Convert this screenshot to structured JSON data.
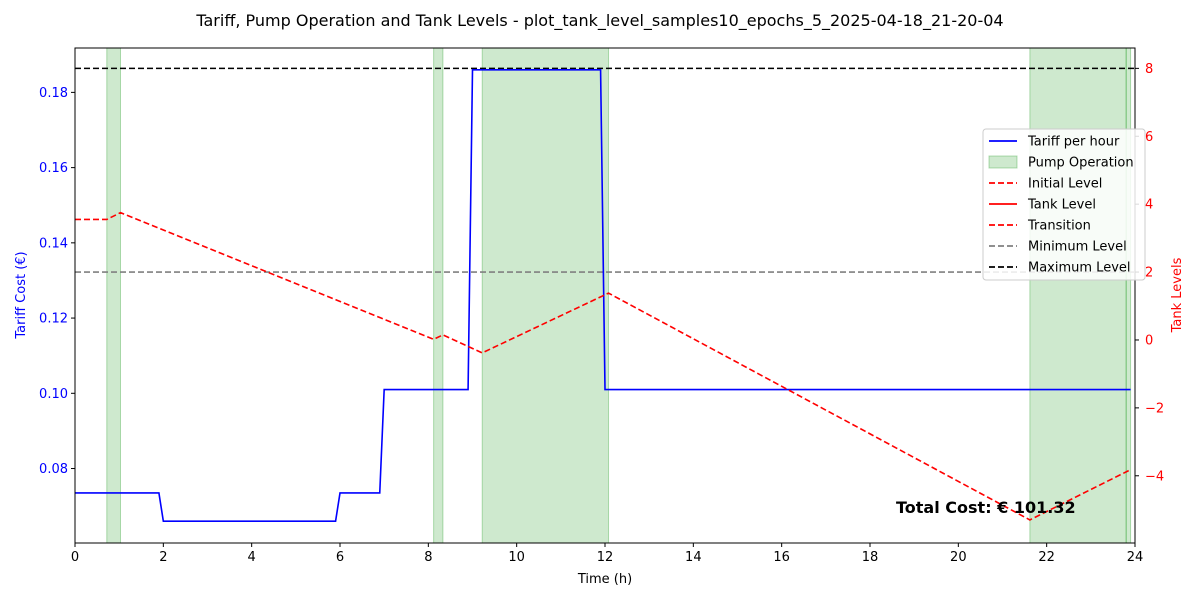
{
  "chart_data": {
    "type": "line",
    "title": "Tariff, Pump Operation and Tank Levels - plot_tank_level_samples10_epochs_5_2025-04-18_21-20-04",
    "xlabel": "Time (h)",
    "ylabel_left": "Tariff Cost (€)",
    "ylabel_right": "Tank Levels",
    "xlim": [
      0,
      24
    ],
    "ylim_left": [
      0.0602,
      0.1918
    ],
    "ylim_right": [
      -5.98,
      8.6
    ],
    "x_ticks": [
      "0",
      "2",
      "4",
      "6",
      "8",
      "10",
      "12",
      "14",
      "16",
      "18",
      "20",
      "22",
      "24"
    ],
    "y_left_ticks": [
      "0.08",
      "0.10",
      "0.12",
      "0.14",
      "0.16",
      "0.18"
    ],
    "y_right_ticks": [
      "−4",
      "−2",
      "0",
      "2",
      "4",
      "6",
      "8"
    ],
    "grid": false,
    "legend_position": "center-right",
    "annotation": "Total Cost: € 101.32",
    "colors": {
      "tariff": "#0000ff",
      "pump": "#2ca02c",
      "tank": "#ff0000",
      "minimum": "#808080",
      "maximum": "#000000",
      "left_axis": "#0000ff",
      "right_axis": "#ff0000"
    },
    "legend": [
      {
        "label": "Tariff per hour",
        "style": "solid",
        "color": "#0000ff"
      },
      {
        "label": "Pump Operation",
        "style": "patch",
        "color": "#2ca02c"
      },
      {
        "label": "Initial Level",
        "style": "dashed",
        "color": "#ff0000"
      },
      {
        "label": "Tank Level",
        "style": "solid",
        "color": "#ff0000"
      },
      {
        "label": "Transition",
        "style": "dashed",
        "color": "#ff0000"
      },
      {
        "label": "Minimum Level",
        "style": "dashed",
        "color": "#808080"
      },
      {
        "label": "Maximum Level",
        "style": "dashed",
        "color": "#000000"
      }
    ],
    "tariff_series": {
      "name": "Tariff per hour",
      "x": [
        0,
        1.9,
        2.0,
        5.9,
        6.0,
        6.9,
        7.0,
        8.9,
        9.0,
        11.9,
        12.0,
        23.9
      ],
      "y": [
        0.0735,
        0.0735,
        0.066,
        0.066,
        0.0735,
        0.0735,
        0.101,
        0.101,
        0.186,
        0.186,
        0.101,
        0.101
      ]
    },
    "pump_operation": [
      [
        0.72,
        1.03
      ],
      [
        8.12,
        8.33
      ],
      [
        9.22,
        12.08
      ],
      [
        21.62,
        23.8
      ],
      [
        23.8,
        23.9
      ]
    ],
    "tank_series": {
      "name": "Tank Level",
      "x": [
        0,
        0.72,
        1.03,
        8.12,
        8.33,
        9.22,
        12.08,
        21.62,
        23.9
      ],
      "y": [
        3.55,
        3.55,
        3.75,
        0.02,
        0.15,
        -0.38,
        1.38,
        -5.3,
        -3.82
      ]
    },
    "minimum_level": 2,
    "maximum_level": 8
  }
}
